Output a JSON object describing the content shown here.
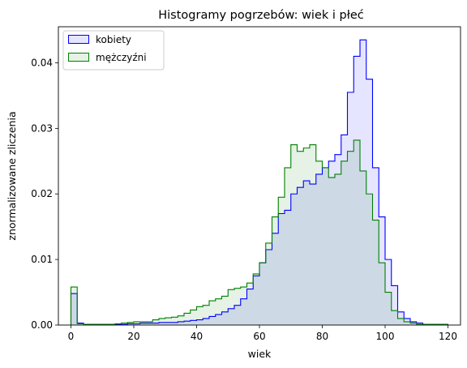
{
  "chart_data": {
    "type": "histogram-step",
    "title": "Histogramy pogrzebów: wiek i płeć",
    "xlabel": "wiek",
    "ylabel": "znormalizowane zliczenia",
    "xlim": [
      -4,
      124
    ],
    "ylim": [
      0,
      0.0455
    ],
    "xticks": [
      0,
      20,
      40,
      60,
      80,
      100,
      120
    ],
    "yticks": [
      0.0,
      0.01,
      0.02,
      0.03,
      0.04
    ],
    "ytick_labels": [
      "0.00",
      "0.01",
      "0.02",
      "0.03",
      "0.04"
    ],
    "grid": false,
    "legend_position": "top-left",
    "bin_start": 0,
    "bin_width": 2,
    "series": [
      {
        "name": "kobiety",
        "edge_color": "#0000ff",
        "fill_color": "#0000ff",
        "fill_opacity": 0.1,
        "values": [
          0.0048,
          0.0003,
          0.0001,
          0.0001,
          0.0001,
          0.0001,
          0.0001,
          0.0001,
          0.0001,
          0.0002,
          0.0002,
          0.0003,
          0.0003,
          0.0003,
          0.0004,
          0.0004,
          0.0004,
          0.0005,
          0.0006,
          0.0007,
          0.0008,
          0.001,
          0.0013,
          0.0016,
          0.002,
          0.0025,
          0.003,
          0.004,
          0.0055,
          0.0075,
          0.0095,
          0.0115,
          0.014,
          0.017,
          0.0175,
          0.02,
          0.021,
          0.022,
          0.0215,
          0.023,
          0.024,
          0.025,
          0.026,
          0.029,
          0.0355,
          0.041,
          0.0435,
          0.0375,
          0.024,
          0.0165,
          0.01,
          0.006,
          0.002,
          0.001,
          0.0005,
          0.0003,
          0.0001,
          0.0001,
          0.0001,
          0.0001
        ]
      },
      {
        "name": "mężczyźni",
        "edge_color": "#008000",
        "fill_color": "#008000",
        "fill_opacity": 0.1,
        "values": [
          0.0058,
          0.0002,
          0.0001,
          0.0001,
          0.0001,
          0.0001,
          0.0001,
          0.0002,
          0.0003,
          0.0004,
          0.0005,
          0.0005,
          0.0005,
          0.0008,
          0.001,
          0.0011,
          0.0012,
          0.0014,
          0.0018,
          0.0023,
          0.0028,
          0.003,
          0.0037,
          0.004,
          0.0044,
          0.0054,
          0.0056,
          0.0058,
          0.0064,
          0.0078,
          0.0095,
          0.0125,
          0.0165,
          0.0195,
          0.024,
          0.0275,
          0.0265,
          0.027,
          0.0275,
          0.025,
          0.024,
          0.0225,
          0.023,
          0.025,
          0.0265,
          0.0282,
          0.0235,
          0.02,
          0.016,
          0.0095,
          0.005,
          0.0022,
          0.001,
          0.0005,
          0.0003,
          0.0001,
          0.0001,
          0.0001,
          0.0001,
          0.0001
        ]
      }
    ]
  }
}
